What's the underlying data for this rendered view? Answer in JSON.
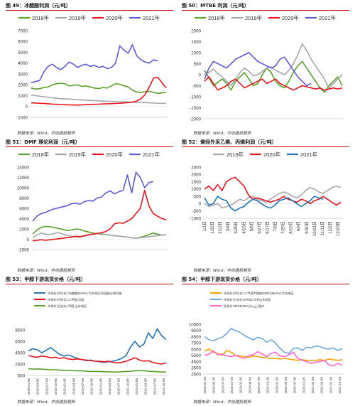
{
  "source_note": "数据来源：Wind，中信建投期货",
  "charts": [
    {
      "figure_title": "图 49：冰醋酸利润（元/吨）",
      "chart_data": {
        "type": "line",
        "title": "图 49：冰醋酸利润（元/吨）",
        "ylim": [
          -1000,
          7000
        ],
        "yticks": [
          "7000",
          "6000",
          "5000",
          "4000",
          "3000",
          "2000",
          "1000",
          "0",
          "-1000"
        ],
        "xticks": [],
        "legend_position": "top",
        "series": [
          {
            "name": "2018年",
            "color": "#5aa02c",
            "values": [
              1700,
              1600,
              1650,
              1750,
              1800,
              2000,
              2100,
              2150,
              2100,
              1900,
              1950,
              2000,
              1850,
              1900,
              1800,
              1700,
              1650,
              1750,
              1700,
              1900,
              2100,
              2050,
              1900,
              1800,
              1500,
              1350,
              1300,
              1350,
              1400,
              1300,
              1200,
              1250,
              1300
            ]
          },
          {
            "name": "2019年",
            "color": "#a6a6a6",
            "values": [
              1050,
              1000,
              950,
              900,
              850,
              800,
              760,
              720,
              700,
              680,
              650,
              620,
              600,
              580,
              560,
              540,
              520,
              500,
              480,
              460,
              440,
              430,
              420,
              410,
              400,
              390,
              380,
              360,
              340,
              320,
              300,
              290,
              280
            ]
          },
          {
            "name": "2020年",
            "color": "#e8141c",
            "values": [
              350,
              320,
              300,
              280,
              250,
              220,
              200,
              180,
              160,
              150,
              140,
              130,
              150,
              170,
              190,
              200,
              210,
              230,
              250,
              260,
              280,
              300,
              330,
              360,
              400,
              500,
              700,
              1100,
              1800,
              2600,
              2700,
              2200,
              1700
            ]
          },
          {
            "name": "2021年",
            "color": "#5b5bd6",
            "values": [
              2200,
              2300,
              2400,
              3200,
              3700,
              3900,
              3600,
              3400,
              3700,
              4100,
              3900,
              3600,
              3800,
              3900,
              3700,
              3800,
              3600,
              3700,
              3500,
              3600,
              4000,
              5600,
              5200,
              4900,
              5700,
              4700,
              4300,
              4100,
              4000,
              4300,
              4200,
              null,
              null
            ]
          }
        ]
      }
    },
    {
      "figure_title": "图 50：MTBE 利润（元/吨）",
      "chart_data": {
        "type": "line",
        "title": "图 50：MTBE 利润（元/吨）",
        "ylim": [
          -2000,
          2000
        ],
        "yticks": [
          "2000",
          "1500",
          "1000",
          "500",
          "0",
          "-500",
          "-1000",
          "-1500",
          "-2000"
        ],
        "xticks": [],
        "legend_position": "top",
        "series": [
          {
            "name": "2018年",
            "color": "#5aa02c",
            "values": [
              200,
              -150,
              -500,
              -350,
              -200,
              -400,
              -700,
              -300,
              -100,
              100,
              -200,
              -500,
              -400,
              0,
              300,
              100,
              -300,
              -500,
              -600,
              -300,
              100,
              400,
              600,
              300,
              0,
              -300,
              -600,
              -800,
              -500,
              -300,
              -100,
              -500
            ]
          },
          {
            "name": "2019年",
            "color": "#a6a6a6",
            "values": [
              0,
              100,
              250,
              50,
              -100,
              -300,
              -500,
              -200,
              100,
              300,
              150,
              -50,
              0,
              150,
              300,
              350,
              200,
              100,
              0,
              200,
              500,
              900,
              1400,
              1100,
              700,
              400,
              100,
              -200,
              -600,
              -400,
              -200,
              0
            ]
          },
          {
            "name": "2020年",
            "color": "#e8141c",
            "values": [
              -300,
              -100,
              -400,
              -700,
              -600,
              -500,
              -300,
              -200,
              -400,
              -600,
              -500,
              -400,
              -300,
              -200,
              -400,
              -300,
              -200,
              -400,
              -500,
              -600,
              -700,
              -600,
              -500,
              -550,
              -600,
              -650,
              -600,
              -700,
              -650,
              -600,
              -650,
              -600
            ]
          },
          {
            "name": "2021年",
            "color": "#5b5bd6",
            "values": [
              -200,
              300,
              600,
              500,
              400,
              300,
              500,
              700,
              800,
              900,
              1000,
              800,
              600,
              500,
              400,
              300,
              400,
              700,
              800,
              500,
              200,
              -100,
              -300,
              -500,
              -400,
              null,
              null,
              null,
              null,
              null,
              null,
              null
            ]
          }
        ]
      }
    },
    {
      "figure_title": "图 51：DMF 理论利润（元/吨）",
      "chart_data": {
        "type": "line",
        "title": "图 51：DMF 理论利润（元/吨）",
        "ylim": [
          -2000,
          14000
        ],
        "yticks": [
          "14000",
          "12000",
          "10000",
          "8000",
          "6000",
          "4000",
          "2000",
          "0",
          "-2000"
        ],
        "xticks": [],
        "legend_position": "top",
        "series": [
          {
            "name": "2018年",
            "color": "#5aa02c",
            "values": [
              1000,
              1800,
              2300,
              2500,
              2400,
              2300,
              2100,
              1900,
              1700,
              1800,
              2000,
              1900,
              1600,
              1400,
              1200,
              1100,
              1000,
              900,
              800,
              700,
              600,
              500,
              400,
              300,
              200,
              400,
              600,
              900,
              1200,
              1000,
              800,
              900
            ]
          },
          {
            "name": "2019年",
            "color": "#a6a6a6",
            "values": [
              300,
              800,
              1200,
              1000,
              900,
              1100,
              1300,
              1000,
              800,
              600,
              500,
              400,
              600,
              800,
              1000,
              1200,
              1100,
              900,
              800,
              700,
              600,
              500,
              400,
              300,
              200,
              300,
              400,
              500,
              600,
              700,
              800,
              900
            ]
          },
          {
            "name": "2020年",
            "color": "#e8141c",
            "values": [
              -300,
              -200,
              -100,
              -200,
              -100,
              0,
              100,
              200,
              300,
              400,
              600,
              500,
              700,
              900,
              1000,
              1100,
              1300,
              1500,
              2000,
              3000,
              3200,
              3100,
              3500,
              4000,
              5000,
              6000,
              9500,
              6500,
              5000,
              4500,
              4000,
              3800
            ]
          },
          {
            "name": "2021年",
            "color": "#5b5bd6",
            "values": [
              3500,
              4500,
              5000,
              5200,
              5600,
              5900,
              6100,
              6300,
              6500,
              6900,
              7000,
              6800,
              7300,
              7500,
              7400,
              8000,
              8200,
              9000,
              9400,
              8800,
              9200,
              9500,
              12500,
              9000,
              13000,
              12000,
              10000,
              11000,
              11200,
              null,
              null,
              null
            ]
          }
        ]
      }
    },
    {
      "figure_title": "图 52：烯烃外采乙烯、丙烯利润（元/吨）",
      "chart_data": {
        "type": "line",
        "title": "图 52：烯烃外采乙烯、丙烯利润（元/吨）",
        "ylim": [
          -1000,
          2500
        ],
        "yticks": [
          "2500",
          "2000",
          "1500",
          "1000",
          "500",
          "0",
          "-500",
          "-1000"
        ],
        "xticks": [
          "1/1日",
          "1/22日",
          "2/12日",
          "3/4日",
          "3/25日",
          "4/15日",
          "5/6日",
          "5/27日",
          "6/17日",
          "7/8日",
          "7/29日",
          "8/19日",
          "9/9日",
          "9/30日",
          "10/21日",
          "11/11日",
          "12/2日",
          "12/23日"
        ],
        "legend_position": "top",
        "series": [
          {
            "name": "2019年",
            "color": "#a6a6a6",
            "values": [
              0,
              -200,
              -100,
              0,
              -300,
              -200,
              -100,
              100,
              300,
              200,
              400,
              500,
              300,
              200,
              100,
              300,
              500,
              700,
              800,
              700,
              500,
              400,
              600,
              900,
              1100,
              1000,
              800,
              700,
              900,
              1100,
              1200,
              1100
            ]
          },
          {
            "name": "2020年",
            "color": "#e8141c",
            "values": [
              1000,
              1200,
              900,
              1300,
              900,
              1500,
              1700,
              1800,
              1500,
              1200,
              600,
              300,
              400,
              300,
              200,
              100,
              200,
              300,
              500,
              300,
              200,
              100,
              300,
              200,
              0,
              200,
              300,
              500,
              300,
              100,
              -100,
              100
            ]
          },
          {
            "name": "2021年",
            "color": "#2173b8",
            "values": [
              400,
              -100,
              0,
              500,
              300,
              200,
              -300,
              -500,
              -300,
              -200,
              100,
              300,
              200,
              0,
              -200,
              -300,
              -100,
              200,
              300,
              400,
              200,
              0,
              -200,
              0,
              200,
              500,
              400,
              300,
              null,
              null,
              null,
              null
            ]
          }
        ]
      }
    },
    {
      "figure_title": "图 53：甲醇下游现货价格（元/吨）",
      "chart_data": {
        "type": "line",
        "title": "图 53：甲醇下游现货价格（元/吨）",
        "ylim": [
          500,
          8500
        ],
        "yticks": [
          "8500",
          "6500",
          "4500",
          "2500",
          "500"
        ],
        "xticks": [
          "2018-01-05",
          "2018-04-05",
          "2018-07-05",
          "2018-10-05",
          "2019-01-05",
          "2019-04-05",
          "2019-07-05",
          "2019-10-05",
          "2020-01-05",
          "2020-04-05",
          "2020-07-05",
          "2020-10-05",
          "2021-01-05",
          "2021-04-05",
          "2021-07-05",
          "2021-10-05"
        ],
        "legend_position": "top",
        "series": [
          {
            "name": "市场价(中间价):冰醋酸(99.5%):华东地区/多值统计取均值",
            "color": "#2173b8",
            "values": [
              4800,
              5200,
              5000,
              4500,
              4900,
              5400,
              4800,
              4200,
              3900,
              4100,
              3800,
              3500,
              3300,
              3100,
              3200,
              3000,
              2900,
              2800,
              2900,
              3000,
              3200,
              3500,
              4000,
              5500,
              6500,
              5500,
              6000,
              8000,
              7000,
              8700,
              7500,
              6800
            ]
          },
          {
            "name": "市场价(中间价):二甲醚:河南",
            "color": "#e8141c",
            "values": [
              4000,
              3800,
              3700,
              3900,
              3800,
              3600,
              3700,
              3500,
              3600,
              3400,
              3300,
              3400,
              3300,
              3200,
              3100,
              3000,
              3000,
              2900,
              3000,
              2800,
              2700,
              2800,
              3000,
              3300,
              3600,
              3200,
              3000,
              3100,
              2800,
              2600,
              2500,
              2700
            ]
          },
          {
            "name": "市场价(主流价):甲醛:山东地区",
            "color": "#5aa02c",
            "values": [
              1700,
              1600,
              1650,
              1600,
              1550,
              1500,
              1500,
              1450,
              1400,
              1400,
              1350,
              1300,
              1300,
              1250,
              1200,
              1200,
              1200,
              1150,
              1150,
              1100,
              1100,
              1150,
              1200,
              1250,
              1300,
              1350,
              1300,
              1250,
              1200,
              1150,
              1100,
              1100
            ]
          }
        ]
      }
    },
    {
      "figure_title": "图 54：甲醇下游现货价格（元/吨）",
      "chart_data": {
        "type": "line",
        "title": "图 54：甲醇下游现货价格（元/吨）",
        "ylim": [
          2500,
          10500
        ],
        "yticks": [
          "10500",
          "9500",
          "8500",
          "7500",
          "6500",
          "5500",
          "4500",
          "3500",
          "2500"
        ],
        "xticks": [
          "2018-01-05",
          "2018-04-05",
          "2018-07-05",
          "2018-10-05",
          "2019-01-05",
          "2019-04-05",
          "2019-07-05",
          "2019-10-05",
          "2020-01-05",
          "2020-04-05",
          "2020-07-05",
          "2020-10-05",
          "2021-01-05",
          "2021-04-05",
          "2021-07-05",
          "2021-10-05"
        ],
        "legend_position": "top",
        "series": [
          {
            "name": "市场价(中间价):二甲基甲酰胺(DMF)(99.9%):华东地区",
            "color": "#f0a30a",
            "values": [
              6200,
              6500,
              6000,
              5800,
              5500,
              6300,
              6000,
              5500,
              5400,
              5300,
              5200,
              5400,
              5300,
              5200,
              5100,
              5000,
              5000,
              4900,
              5000,
              4900,
              4800,
              4700,
              4800,
              4700,
              4700,
              4700,
              4800,
              4700,
              4900,
              4800,
              4700,
              4800
            ]
          },
          {
            "name": "市场价(主流价):MTBE:华东山东地区",
            "color": "#6fa8dc",
            "values": [
              8500,
              8000,
              7800,
              8200,
              8400,
              9000,
              9800,
              9500,
              9200,
              8700,
              8300,
              8000,
              8400,
              8200,
              7600,
              8000,
              7500,
              6600,
              6000,
              5800,
              6600,
              6700,
              6300,
              6800,
              6700,
              7000,
              6900,
              6600,
              6500,
              6700,
              6300,
              6600
            ]
          },
          {
            "name": "现货价:MTBE(99%)(以上):国内",
            "color": "#ff66cc",
            "values": [
              5500,
              5700,
              6200,
              5600,
              5700,
              5400,
              5300,
              5500,
              5200,
              5000,
              5500,
              5600,
              6100,
              5700,
              5300,
              5800,
              6000,
              5400,
              5300,
              5600,
              6000,
              5000,
              4700,
              4500,
              4200,
              4400,
              4500,
              4700,
              4000,
              3800,
              4200,
              3900
            ]
          }
        ]
      }
    }
  ]
}
